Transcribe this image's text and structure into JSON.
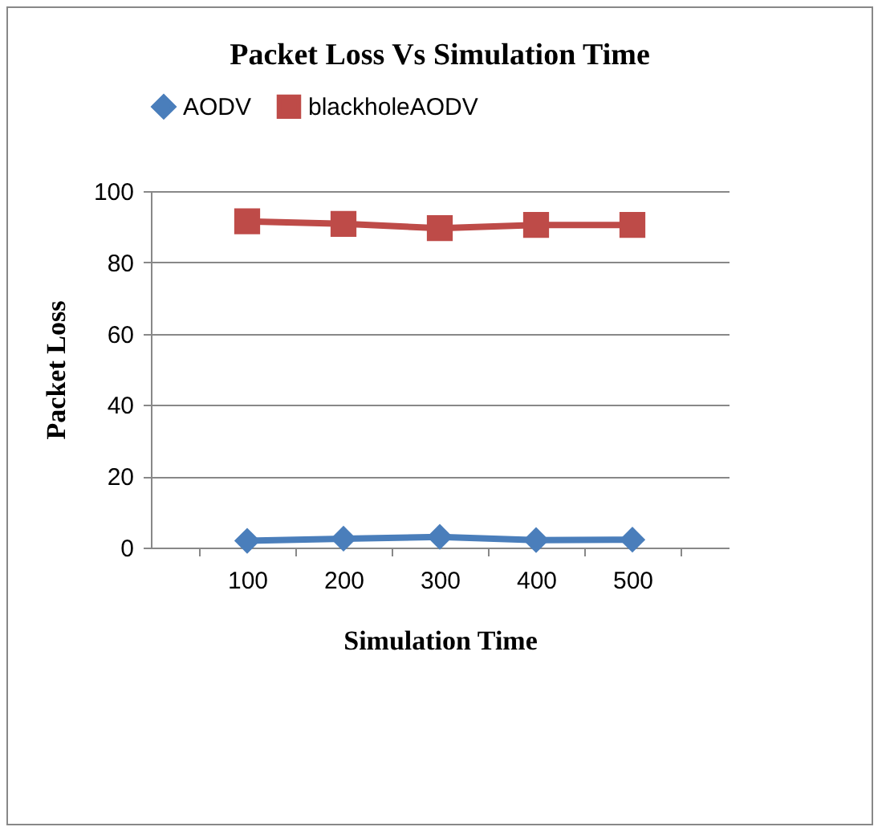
{
  "chart_data": {
    "type": "line",
    "title": "Packet Loss Vs Simulation Time",
    "xlabel": "Simulation Time",
    "ylabel": "Packet Loss",
    "categories": [
      "100",
      "200",
      "300",
      "400",
      "500"
    ],
    "series": [
      {
        "name": "AODV",
        "color": "#4a7ebb",
        "marker": "diamond",
        "values": [
          1.9,
          2.5,
          3.0,
          2.1,
          2.2
        ]
      },
      {
        "name": "blackholeAODV",
        "color": "#be4b48",
        "marker": "square",
        "values": [
          91.5,
          90.8,
          89.6,
          90.5,
          90.5
        ]
      }
    ],
    "ylim": [
      0,
      100
    ],
    "yticks": [
      0,
      20,
      40,
      60,
      80,
      100
    ],
    "grid": "y",
    "legend": "top"
  }
}
